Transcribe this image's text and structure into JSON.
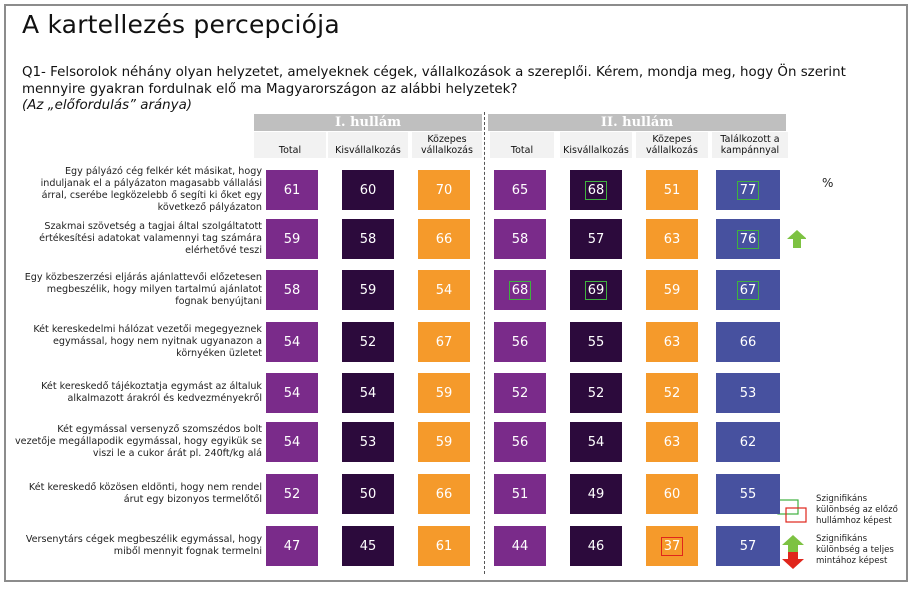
{
  "title": "A kartellezés percepciója",
  "question": "Q1- Felsorolok néhány olyan helyzetet, amelyeknek cégek, vállalkozások a szereplői. Kérem, mondja meg, hogy Ön szerint mennyire gyakran fordulnak elő ma Magyarországon az alábbi helyzetek?",
  "subtitle": "(Az „előfordulás” aránya)",
  "wave1_label": "I. hullám",
  "wave2_label": "II. hullám",
  "unit": "%",
  "legend": {
    "wave_diff": "Szignifikáns különbség az előző hullámhoz képest",
    "total_diff": "Szignifikáns különbség a teljes mintához képest"
  },
  "colors": {
    "total": "#7a2b8a",
    "small": "#2c0a3c",
    "medium": "#f59a2b",
    "campaign": "#47519f",
    "header_bg": "#f2f2f2",
    "wave_bg": "#bfbfbf"
  },
  "chart_data": {
    "type": "table",
    "columns": [
      {
        "wave": "I. hullám",
        "label": "Total"
      },
      {
        "wave": "I. hullám",
        "label": "Kisvállalkozás"
      },
      {
        "wave": "I. hullám",
        "label": "Közepes vállalkozás"
      },
      {
        "wave": "II. hullám",
        "label": "Total"
      },
      {
        "wave": "II. hullám",
        "label": "Kisvállalkozás"
      },
      {
        "wave": "II. hullám",
        "label": "Közepes vállalkozás"
      },
      {
        "wave": "II. hullám",
        "label": "Találkozott a kampánnyal"
      }
    ],
    "rows": [
      {
        "label": "Egy pályázó cég felkér két másikat, hogy induljanak el a pályázaton magasabb vállalási árral, cserébe legközelebb ő segíti ki őket egy következő pályázaton",
        "values": [
          61,
          60,
          70,
          65,
          68,
          51,
          77
        ],
        "marks": [
          "",
          "",
          "",
          "",
          "wave",
          "",
          "wave"
        ],
        "arrow": ""
      },
      {
        "label": "Szakmai szövetség a tagjai által szolgáltatott értékesítési adatokat valamennyi tag számára elérhetővé teszi",
        "values": [
          59,
          58,
          66,
          58,
          57,
          63,
          76
        ],
        "marks": [
          "",
          "",
          "",
          "",
          "",
          "",
          "wave"
        ],
        "arrow": "up"
      },
      {
        "label": "Egy közbeszerzési eljárás ajánlattevői előzetesen megbeszélik, hogy milyen tartalmú ajánlatot fognak benyújtani",
        "values": [
          58,
          59,
          54,
          68,
          69,
          59,
          67
        ],
        "marks": [
          "",
          "",
          "",
          "wave",
          "wave",
          "",
          "wave"
        ],
        "arrow": ""
      },
      {
        "label": "Két kereskedelmi hálózat vezetői megegyeznek egymással, hogy nem nyitnak ugyanazon a környéken üzletet",
        "values": [
          54,
          52,
          67,
          56,
          55,
          63,
          66
        ],
        "marks": [
          "",
          "",
          "",
          "",
          "",
          "",
          ""
        ],
        "arrow": ""
      },
      {
        "label": "Két kereskedő tájékoztatja egymást az általuk alkalmazott árakról és kedvezményekről",
        "values": [
          54,
          54,
          59,
          52,
          52,
          52,
          53
        ],
        "marks": [
          "",
          "",
          "",
          "",
          "",
          "",
          ""
        ],
        "arrow": ""
      },
      {
        "label": "Két egymással versenyző szomszédos bolt vezetője megállapodik egymással, hogy egyikük se viszi le a cukor árát pl. 240ft/kg alá",
        "values": [
          54,
          53,
          59,
          56,
          54,
          63,
          62
        ],
        "marks": [
          "",
          "",
          "",
          "",
          "",
          "",
          ""
        ],
        "arrow": ""
      },
      {
        "label": "Két kereskedő közösen eldönti, hogy nem rendel árut egy bizonyos termelőtől",
        "values": [
          52,
          50,
          66,
          51,
          49,
          60,
          55
        ],
        "marks": [
          "",
          "",
          "",
          "",
          "",
          "",
          ""
        ],
        "arrow": ""
      },
      {
        "label": "Versenytárs cégek megbeszélik egymással, hogy miből mennyit fognak termelni",
        "values": [
          47,
          45,
          61,
          44,
          46,
          37,
          57
        ],
        "marks": [
          "",
          "",
          "",
          "",
          "",
          "total",
          ""
        ],
        "arrow": ""
      }
    ]
  }
}
